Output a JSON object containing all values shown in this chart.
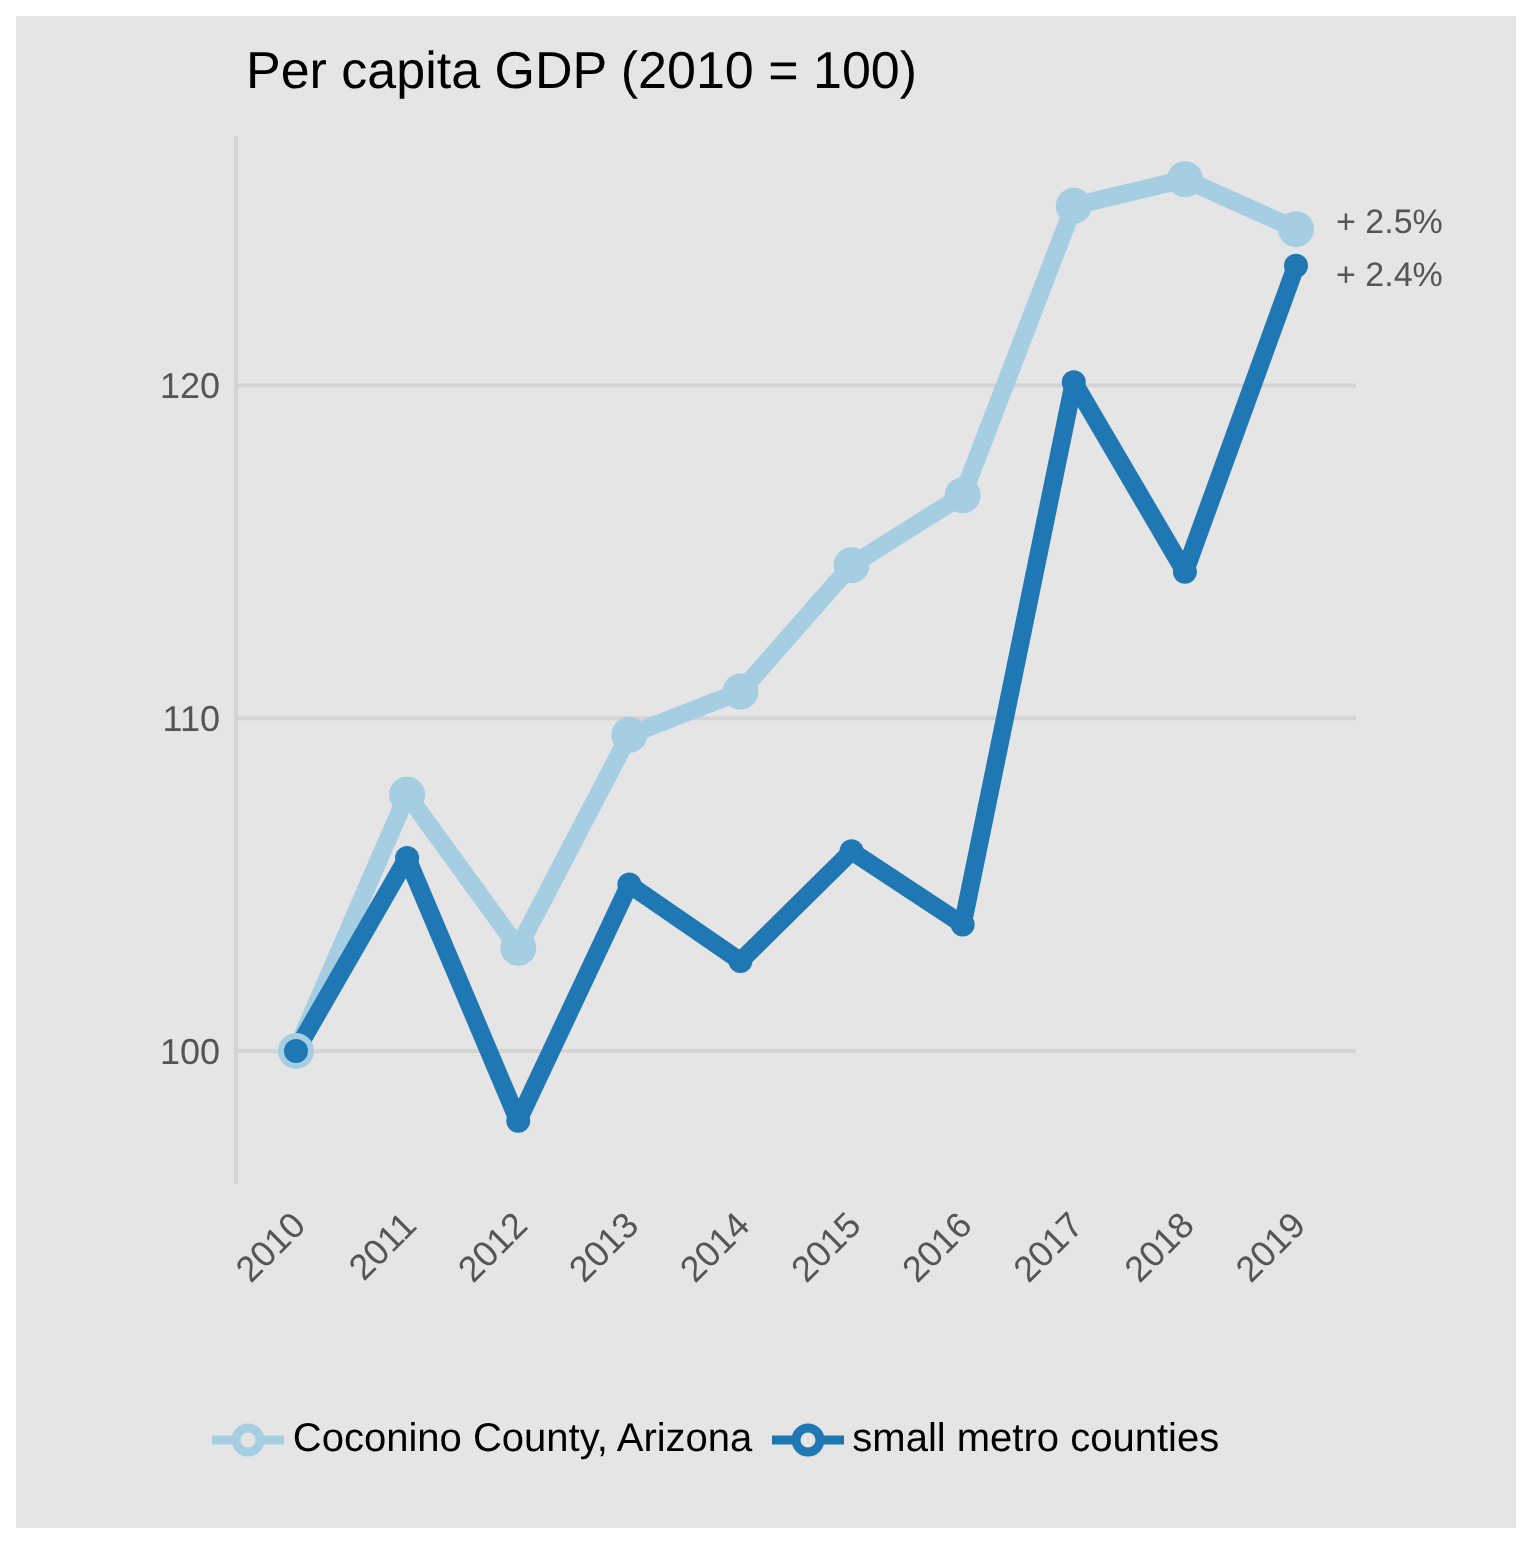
{
  "chart_data": {
    "type": "line",
    "title": "Per capita GDP (2010 = 100)",
    "categories": [
      "2010",
      "2011",
      "2012",
      "2013",
      "2014",
      "2015",
      "2016",
      "2017",
      "2018",
      "2019"
    ],
    "series": [
      {
        "name": "Coconino County, Arizona",
        "color": "#a6cee3",
        "values": [
          100,
          107.7,
          103.1,
          109.5,
          110.8,
          114.6,
          116.7,
          125.4,
          126.2,
          124.7
        ]
      },
      {
        "name": "small metro counties",
        "color": "#1f78b4",
        "values": [
          100,
          105.8,
          97.9,
          105.0,
          102.7,
          106.0,
          103.8,
          120.1,
          114.4,
          123.6
        ]
      }
    ],
    "ylim": [
      96,
      127.5
    ],
    "yticks": [
      100,
      110,
      120
    ],
    "grid": "y",
    "legend": "bottom",
    "marker": "circle",
    "line_style": "solid",
    "annotations": [
      {
        "text": "+ 2.5%",
        "x": "2019",
        "y": 124.7
      },
      {
        "text": "+ 2.4%",
        "x": "2019",
        "y": 123.6
      }
    ]
  }
}
